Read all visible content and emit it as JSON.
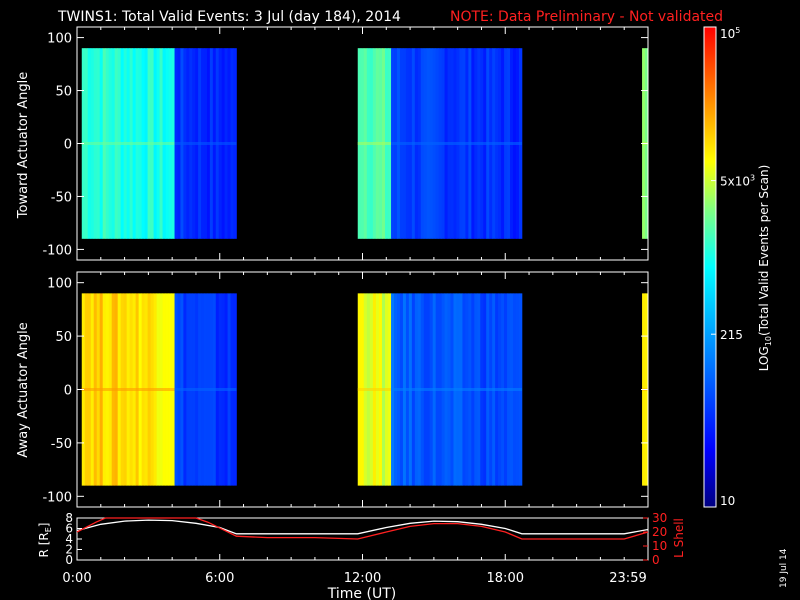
{
  "header": {
    "title": "TWINS1: Total Valid Events:  3 Jul (day 184), 2014",
    "note": "NOTE: Data Preliminary - Not validated"
  },
  "side_date": "19 Jul 14",
  "colors": {
    "background": "#000000",
    "axes": "#ffffff",
    "note_red": "#ff2020",
    "r_line": "#ffffff",
    "lshell_line": "#ff2020"
  },
  "chart_data": [
    {
      "type": "heatmap",
      "panel": "top",
      "ylabel": "Toward Actuator Angle",
      "ylim": [
        -110,
        110
      ],
      "yticks": [
        100,
        50,
        0,
        -50,
        -100
      ],
      "xlim_hours": [
        0,
        24
      ],
      "data_y_range": [
        -90,
        90
      ],
      "segments": [
        {
          "start_h": 0.2,
          "end_h": 4.1,
          "level": 0.55
        },
        {
          "start_h": 4.1,
          "end_h": 6.7,
          "level": 0.2
        },
        {
          "start_h": 11.8,
          "end_h": 13.2,
          "level": 0.6
        },
        {
          "start_h": 13.2,
          "end_h": 18.7,
          "level": 0.22
        },
        {
          "start_h": 23.75,
          "end_h": 24.0,
          "level": 0.62
        }
      ]
    },
    {
      "type": "heatmap",
      "panel": "middle",
      "ylabel": "Away Actuator Angle",
      "ylim": [
        -110,
        110
      ],
      "yticks": [
        100,
        50,
        0,
        -50,
        -100
      ],
      "xlim_hours": [
        0,
        24
      ],
      "data_y_range": [
        -90,
        90
      ],
      "segments": [
        {
          "start_h": 0.2,
          "end_h": 4.1,
          "level": 0.78
        },
        {
          "start_h": 4.1,
          "end_h": 6.7,
          "level": 0.22
        },
        {
          "start_h": 11.8,
          "end_h": 13.2,
          "level": 0.72
        },
        {
          "start_h": 13.2,
          "end_h": 18.7,
          "level": 0.26
        },
        {
          "start_h": 23.75,
          "end_h": 24.0,
          "level": 0.74
        }
      ]
    },
    {
      "type": "line",
      "panel": "bottom",
      "ylabel_left": "R [R",
      "ylabel_left_sub": "E",
      "ylabel_left_end": "]",
      "ylabel_right": "L Shell",
      "left_ylim": [
        0,
        8
      ],
      "left_yticks": [
        0,
        2,
        4,
        6,
        8
      ],
      "right_ylim": [
        0,
        30
      ],
      "right_yticks": [
        0,
        10,
        20,
        30
      ],
      "xlabel": "Time (UT)",
      "xticks": [
        {
          "h": 0,
          "label": "0:00"
        },
        {
          "h": 6,
          "label": "6:00"
        },
        {
          "h": 12,
          "label": "12:00"
        },
        {
          "h": 18,
          "label": "18:00"
        },
        {
          "h": 23.98,
          "label": "23:59"
        }
      ],
      "series": [
        {
          "axis": "left",
          "x_hours": [
            0,
            1,
            2,
            3,
            4,
            5,
            6,
            6.7,
            8,
            10,
            11.8,
            13,
            14,
            15,
            16,
            17,
            18,
            18.7,
            20,
            22,
            23,
            24
          ],
          "y": [
            5.6,
            6.8,
            7.4,
            7.6,
            7.5,
            7.0,
            6.2,
            5.0,
            5.0,
            5.0,
            5.0,
            6.2,
            7.0,
            7.4,
            7.3,
            6.8,
            6.0,
            5.0,
            5.0,
            5.0,
            5.0,
            5.8
          ]
        },
        {
          "axis": "right",
          "x_hours": [
            0,
            0.8,
            1.2,
            5.0,
            5.5,
            6.7,
            8,
            10,
            11.8,
            13,
            14,
            15,
            16,
            17,
            18,
            18.7,
            20,
            22,
            23,
            24
          ],
          "y": [
            20,
            27,
            32,
            32,
            27,
            17,
            16,
            16,
            15,
            20,
            24,
            26,
            26,
            24,
            20,
            15,
            15,
            15,
            15,
            20
          ]
        }
      ]
    },
    {
      "type": "colorbar",
      "label": "LOG",
      "label_sub": "10",
      "label_end": "(Total Valid Events per Scan)",
      "tick_labels": [
        {
          "pos": 0.0,
          "text": "10",
          "sup": ""
        },
        {
          "pos": 0.36,
          "text": "215",
          "sup": ""
        },
        {
          "pos": 0.68,
          "text": "5x10",
          "sup": "3"
        },
        {
          "pos": 1.0,
          "text": "10",
          "sup": "5"
        }
      ]
    }
  ]
}
